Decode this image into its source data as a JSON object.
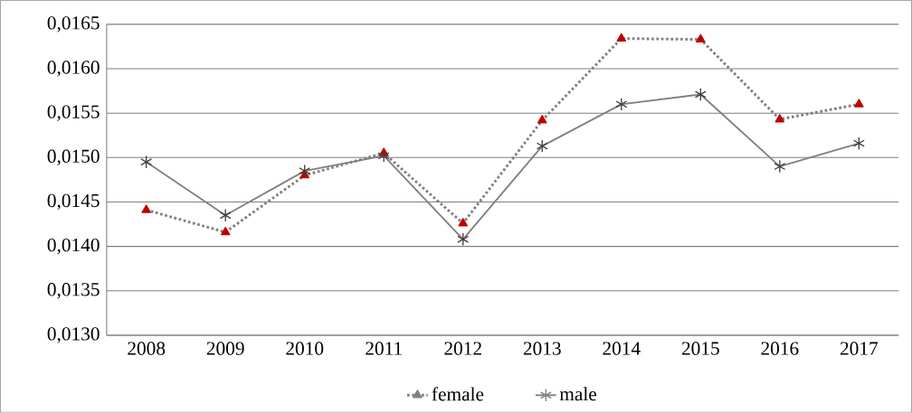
{
  "chart_data": {
    "type": "line",
    "categories": [
      "2008",
      "2009",
      "2010",
      "2011",
      "2012",
      "2013",
      "2014",
      "2015",
      "2016",
      "2017"
    ],
    "series": [
      {
        "name": "female",
        "color": "#808080",
        "colors": [
          "#c00000",
          "#c00000",
          "#c00000",
          "#c00000",
          "#c00000",
          "#c00000",
          "#c00000",
          "#c00000",
          "#c00000",
          "#c00000"
        ],
        "marker": "triangle",
        "line_style": "dotted",
        "values": [
          0.01441,
          0.01416,
          0.0148,
          0.01505,
          0.01426,
          0.01542,
          0.01634,
          0.01633,
          0.01543,
          0.0156
        ]
      },
      {
        "name": "male",
        "color": "#808080",
        "colors": [
          "#404040",
          "#404040",
          "#404040",
          "#404040",
          "#404040",
          "#404040",
          "#404040",
          "#404040",
          "#404040",
          "#404040"
        ],
        "marker": "cross",
        "line_style": "solid",
        "values": [
          0.01495,
          0.01435,
          0.01485,
          0.01502,
          0.01408,
          0.01513,
          0.0156,
          0.01571,
          0.0149,
          0.01516
        ]
      }
    ],
    "ylim": [
      0.013,
      0.0165
    ],
    "yticks": [
      {
        "value": 0.013,
        "label": "0,0130"
      },
      {
        "value": 0.0135,
        "label": "0,0135"
      },
      {
        "value": 0.014,
        "label": "0,0140"
      },
      {
        "value": 0.0145,
        "label": "0,0145"
      },
      {
        "value": 0.015,
        "label": "0,0150"
      },
      {
        "value": 0.0155,
        "label": "0,0155"
      },
      {
        "value": 0.016,
        "label": "0,0160"
      },
      {
        "value": 0.0165,
        "label": "0,0165"
      }
    ],
    "grid": "y",
    "legend": "bottom"
  }
}
